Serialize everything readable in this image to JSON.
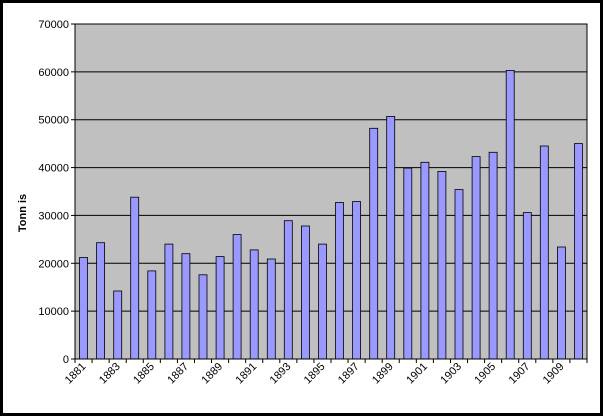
{
  "chart_data": {
    "type": "bar",
    "title": "",
    "xlabel": "",
    "ylabel": "Tonn is",
    "ylim": [
      0,
      70000
    ],
    "yticks": [
      0,
      10000,
      20000,
      30000,
      40000,
      50000,
      60000,
      70000
    ],
    "categories": [
      "1881",
      "1882",
      "1883",
      "1884",
      "1885",
      "1886",
      "1887",
      "1888",
      "1889",
      "1890",
      "1891",
      "1892",
      "1893",
      "1894",
      "1895",
      "1896",
      "1897",
      "1898",
      "1899",
      "1900",
      "1901",
      "1902",
      "1903",
      "1904",
      "1905",
      "1906",
      "1907",
      "1908",
      "1909",
      "1910"
    ],
    "xtick_labels": [
      "1881",
      "1883",
      "1885",
      "1887",
      "1889",
      "1891",
      "1893",
      "1895",
      "1897",
      "1899",
      "1901",
      "1903",
      "1905",
      "1907",
      "1909"
    ],
    "values": [
      21200,
      24300,
      14200,
      33800,
      18400,
      24000,
      22000,
      17600,
      21400,
      26000,
      22800,
      20900,
      28900,
      27800,
      24000,
      32700,
      32900,
      48200,
      50700,
      39900,
      41100,
      39200,
      35400,
      42300,
      43200,
      60300,
      30600,
      44500,
      23400,
      45000
    ],
    "grid": true,
    "legend": "none",
    "colors": {
      "bar_fill": "#9999ff",
      "bar_stroke": "#000000",
      "plot_bg": "#c0c0c0",
      "frame_bg": "#ffffff",
      "border": "#000000",
      "gridline": "#000000"
    }
  }
}
